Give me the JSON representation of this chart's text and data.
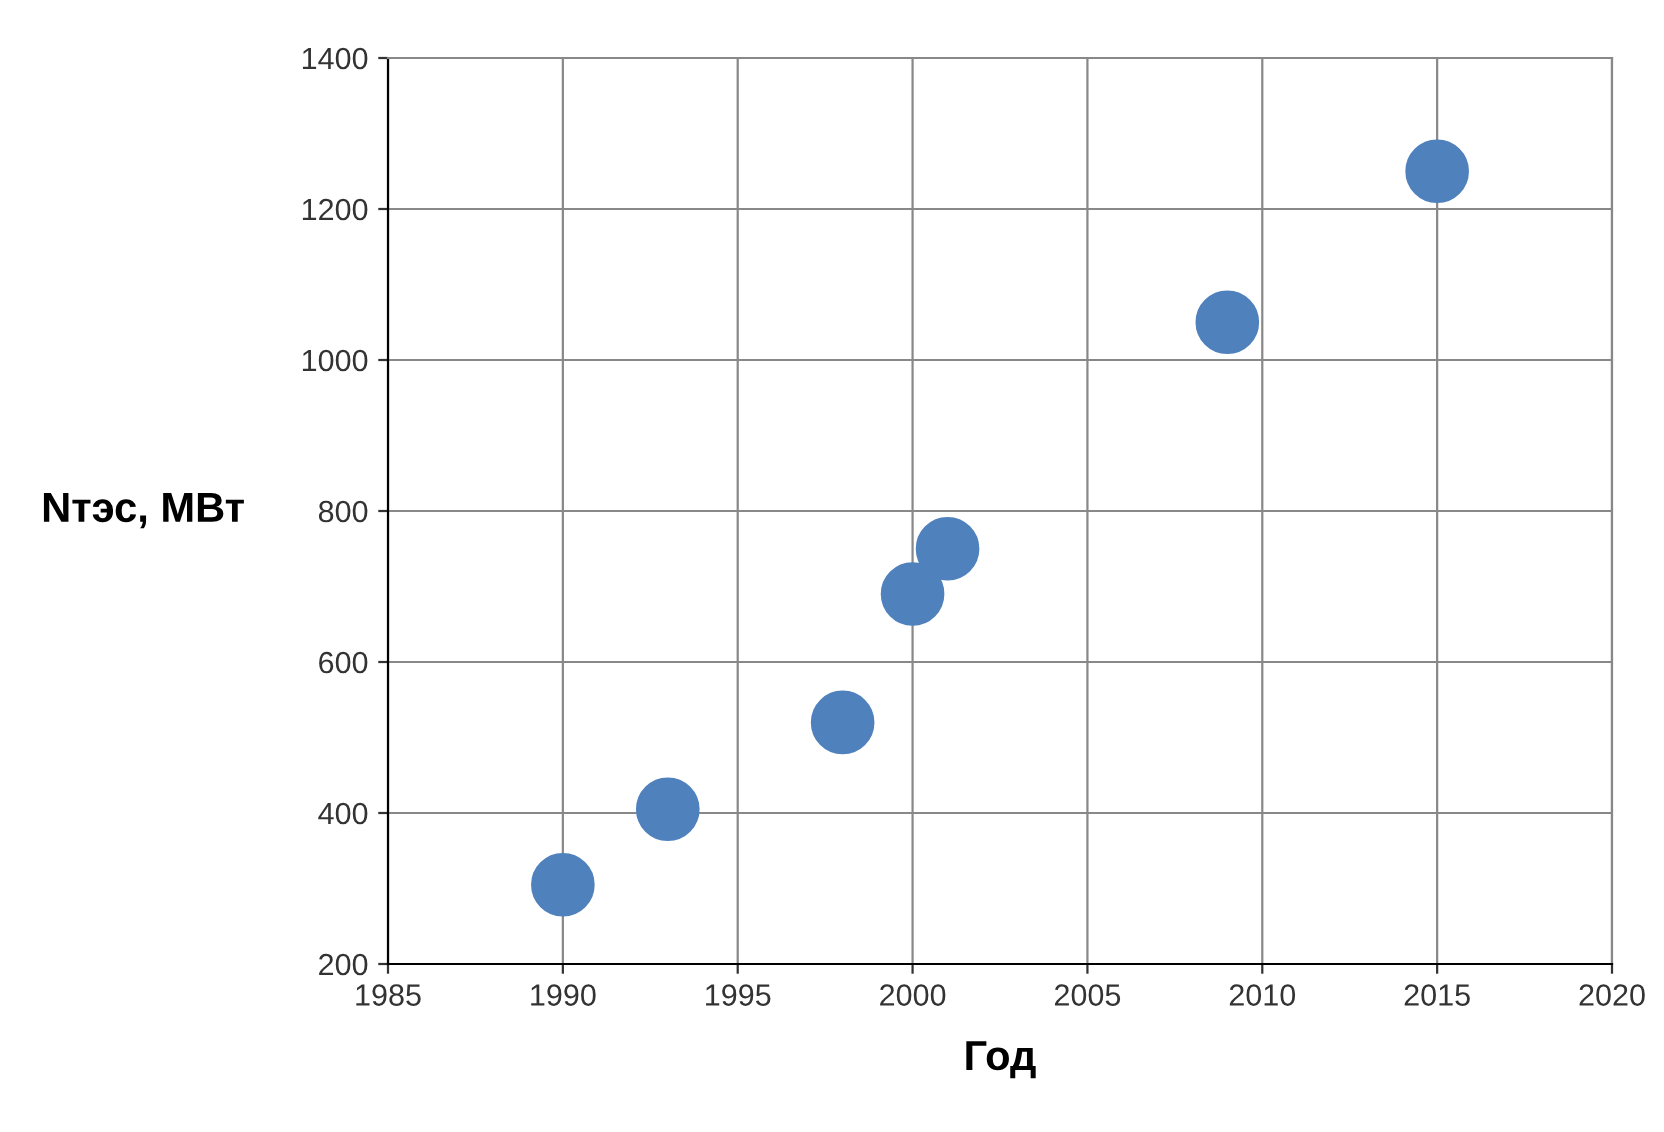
{
  "chart_data": {
    "type": "scatter",
    "xlabel": "Год",
    "ylabel": "Nтэс, МВт",
    "x": [
      1990,
      1993,
      1998,
      2000,
      2001,
      2009,
      2015
    ],
    "series": [
      {
        "color": "#4f81bd",
        "values": [
          305,
          405,
          520,
          690,
          750,
          1050,
          1250
        ]
      }
    ],
    "xlim": [
      1985,
      2020
    ],
    "xticks": [
      1985,
      1990,
      1995,
      2000,
      2005,
      2010,
      2015,
      2020
    ],
    "ylim": [
      200,
      1400
    ],
    "yticks": [
      200,
      400,
      600,
      800,
      1000,
      1200,
      1400
    ],
    "grid": true,
    "marker": "circle"
  }
}
